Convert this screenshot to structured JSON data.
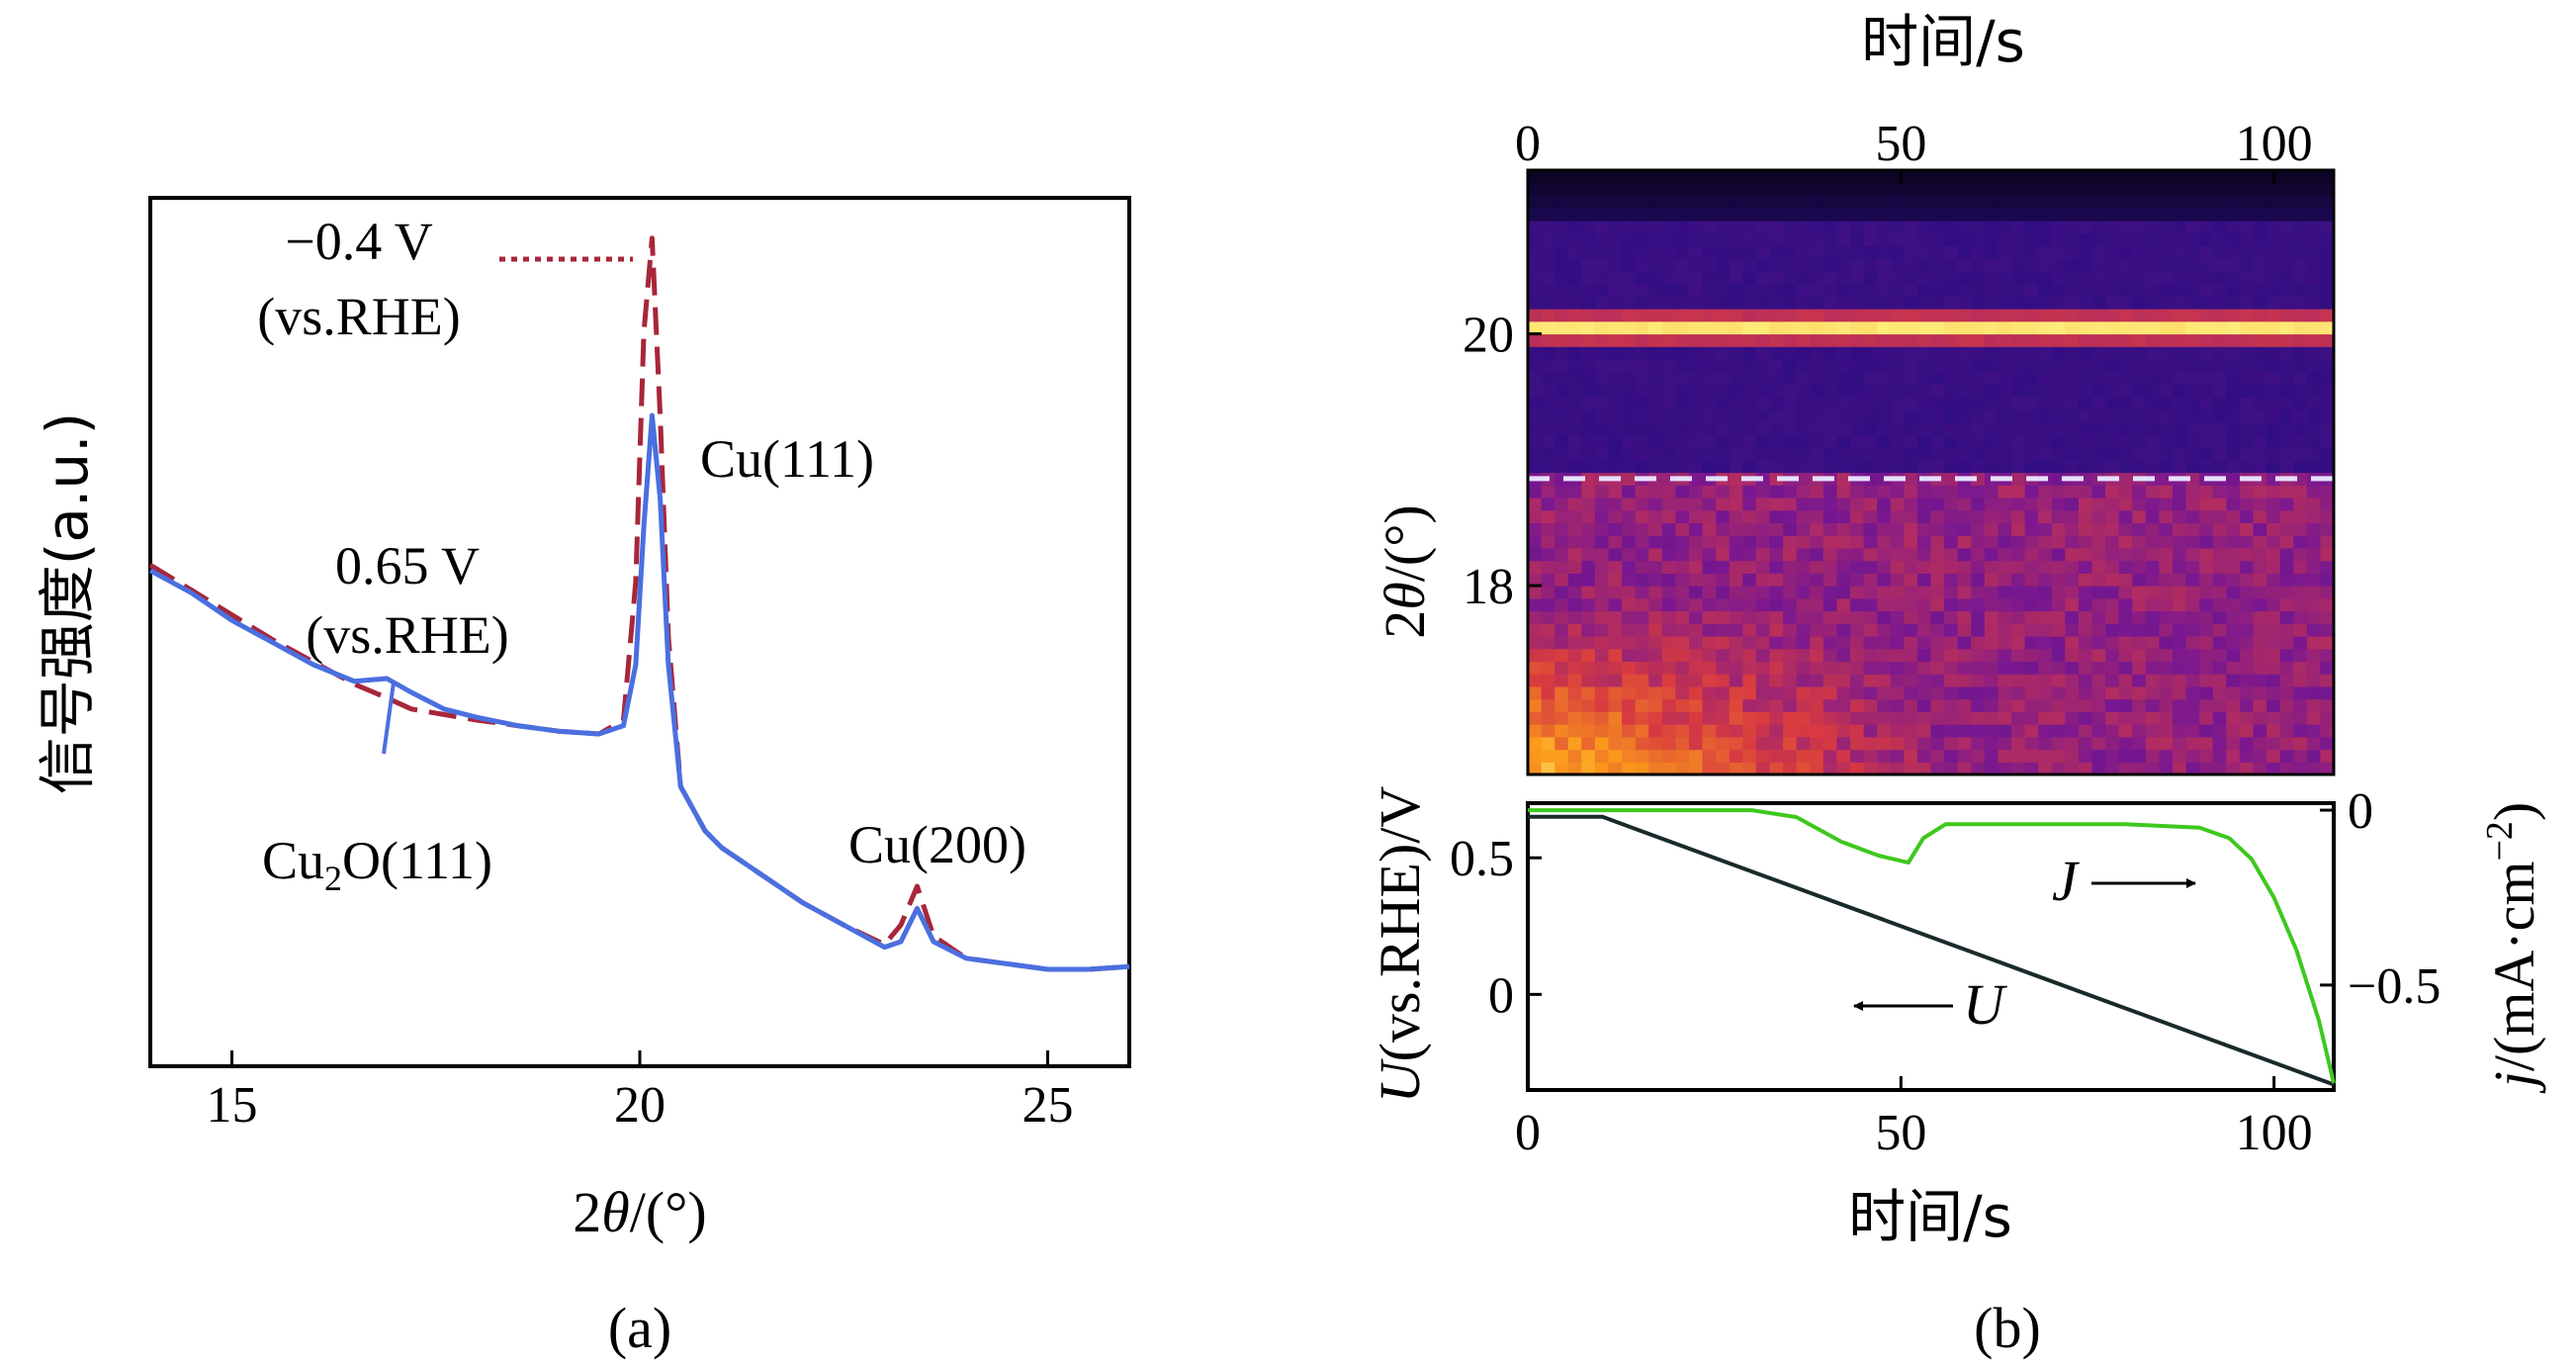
{
  "chart_data": [
    {
      "type": "line",
      "panel_label": "(a)",
      "xlabel_parts": [
        "2",
        "θ",
        "/(°)"
      ],
      "ylabel": "信号强度(a.u.)",
      "xlim": [
        14,
        26
      ],
      "xticks": [
        15,
        20,
        25
      ],
      "yticks_shown": false,
      "series": [
        {
          "color": "#4a6fe0",
          "style": "solid",
          "x": [
            14.0,
            14.5,
            15.0,
            15.5,
            16.0,
            16.5,
            16.9,
            17.2,
            17.6,
            18.0,
            18.5,
            19.0,
            19.5,
            19.8,
            19.95,
            20.05,
            20.15,
            20.25,
            20.35,
            20.5,
            20.8,
            21.0,
            21.5,
            22.0,
            22.5,
            23.0,
            23.2,
            23.4,
            23.6,
            24.0,
            24.5,
            25.0,
            25.5,
            26.0
          ],
          "y": [
            0.72,
            0.68,
            0.63,
            0.59,
            0.55,
            0.52,
            0.525,
            0.5,
            0.47,
            0.455,
            0.44,
            0.43,
            0.425,
            0.44,
            0.55,
            0.8,
            1.0,
            0.85,
            0.55,
            0.33,
            0.25,
            0.22,
            0.17,
            0.12,
            0.08,
            0.04,
            0.05,
            0.11,
            0.05,
            0.02,
            0.01,
            0.0,
            0.0,
            0.005
          ]
        },
        {
          "color": "#a8263a",
          "style": "dashed",
          "x": [
            14.0,
            14.5,
            15.0,
            15.5,
            16.0,
            16.5,
            16.9,
            17.2,
            17.6,
            18.0,
            18.5,
            19.0,
            19.5,
            19.8,
            19.95,
            20.05,
            20.15,
            20.25,
            20.35,
            20.5,
            20.8,
            21.0,
            21.5,
            22.0,
            22.5,
            23.0,
            23.2,
            23.4,
            23.6,
            24.0,
            24.5,
            25.0,
            25.5,
            26.0
          ],
          "y": [
            0.73,
            0.685,
            0.64,
            0.595,
            0.555,
            0.515,
            0.49,
            0.47,
            0.46,
            0.45,
            0.44,
            0.43,
            0.425,
            0.45,
            0.7,
            1.15,
            1.32,
            1.0,
            0.6,
            0.33,
            0.25,
            0.22,
            0.17,
            0.12,
            0.08,
            0.045,
            0.08,
            0.15,
            0.06,
            0.02,
            0.01,
            0.0,
            0.0,
            0.005
          ]
        }
      ],
      "annotations": {
        "red_potential": "−0.4 V",
        "red_ref": "(vs.RHE)",
        "blue_potential": "0.65 V",
        "blue_ref": "(vs.RHE)",
        "peak_cu111": "Cu(111)",
        "peak_cu200": "Cu(200)",
        "peak_cu2o": [
          "Cu",
          "2",
          "O(111)"
        ]
      }
    },
    {
      "type": "heatmap",
      "panel_label": "(b)",
      "top_xlabel": "时间/s",
      "xlim": [
        0,
        108
      ],
      "xticks": [
        0,
        50,
        100
      ],
      "ylabel_parts": [
        "2",
        "θ",
        "/(°)"
      ],
      "ylim": [
        16.5,
        21.3
      ],
      "yticks": [
        18,
        20
      ],
      "bright_band_two_theta": 20.05,
      "dashed_line_two_theta": 18.85,
      "colormap": [
        "#000000",
        "#2a0d80",
        "#7a1890",
        "#d83a40",
        "#fb9b1a",
        "#ffeb7a"
      ]
    },
    {
      "type": "line",
      "xlabel": "时间/s",
      "xlim": [
        0,
        108
      ],
      "xticks": [
        0,
        50,
        100
      ],
      "left_ylabel_parts": [
        "U",
        "(vs.RHE)/V"
      ],
      "left_ylim": [
        -0.35,
        0.7
      ],
      "left_yticks": [
        0,
        0.5
      ],
      "left_yticklabels": [
        "0",
        "0.5"
      ],
      "right_ylabel_parts": [
        "j",
        "/(mA·cm",
        "−2",
        ")"
      ],
      "right_ylim": [
        -0.8,
        0.02
      ],
      "right_yticks": [
        0,
        -0.5
      ],
      "right_yticklabels": [
        "0",
        "−0.5"
      ],
      "series": [
        {
          "name": "U",
          "color": "#1a2a2a",
          "axis": "left",
          "x": [
            0,
            10,
            108
          ],
          "y": [
            0.65,
            0.65,
            -0.33
          ]
        },
        {
          "name": "J",
          "color": "#3ec81e",
          "axis": "right",
          "x": [
            0,
            30,
            36,
            42,
            47,
            51,
            53,
            56,
            60,
            70,
            80,
            90,
            94,
            97,
            100,
            103,
            106,
            108
          ],
          "y": [
            0.0,
            0.0,
            -0.02,
            -0.09,
            -0.13,
            -0.15,
            -0.08,
            -0.04,
            -0.04,
            -0.04,
            -0.04,
            -0.05,
            -0.08,
            -0.14,
            -0.25,
            -0.4,
            -0.6,
            -0.78
          ]
        }
      ],
      "annotations": {
        "J_label": "J",
        "U_label": "U"
      }
    }
  ]
}
